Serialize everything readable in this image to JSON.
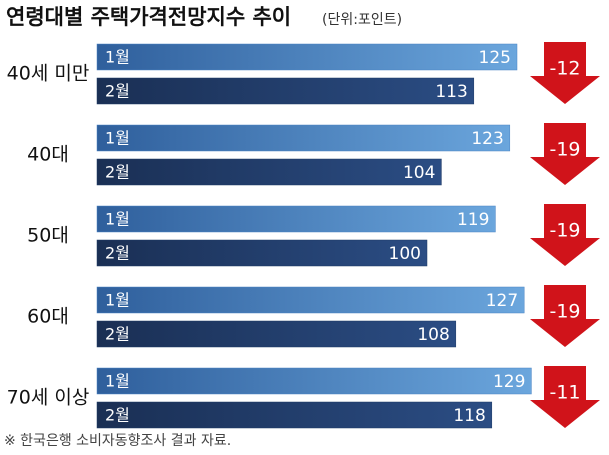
{
  "chart_data": {
    "type": "bar",
    "orientation": "horizontal",
    "title": "연령대별 주택가격전망지수 추이",
    "subtitle": "(단위:포인트)",
    "categories": [
      "40세 미만",
      "40대",
      "50대",
      "60대",
      "70세 이상"
    ],
    "series": [
      {
        "name": "1월",
        "color": "#4a84c4",
        "values": [
          125,
          123,
          119,
          127,
          129
        ]
      },
      {
        "name": "2월",
        "color": "#1f3a66",
        "values": [
          113,
          104,
          100,
          108,
          118
        ]
      }
    ],
    "changes": [
      -12,
      -19,
      -19,
      -19,
      -11
    ],
    "change_color": "#d0131a",
    "source": "※ 한국은행 소비자동향조사 결과 자료."
  }
}
